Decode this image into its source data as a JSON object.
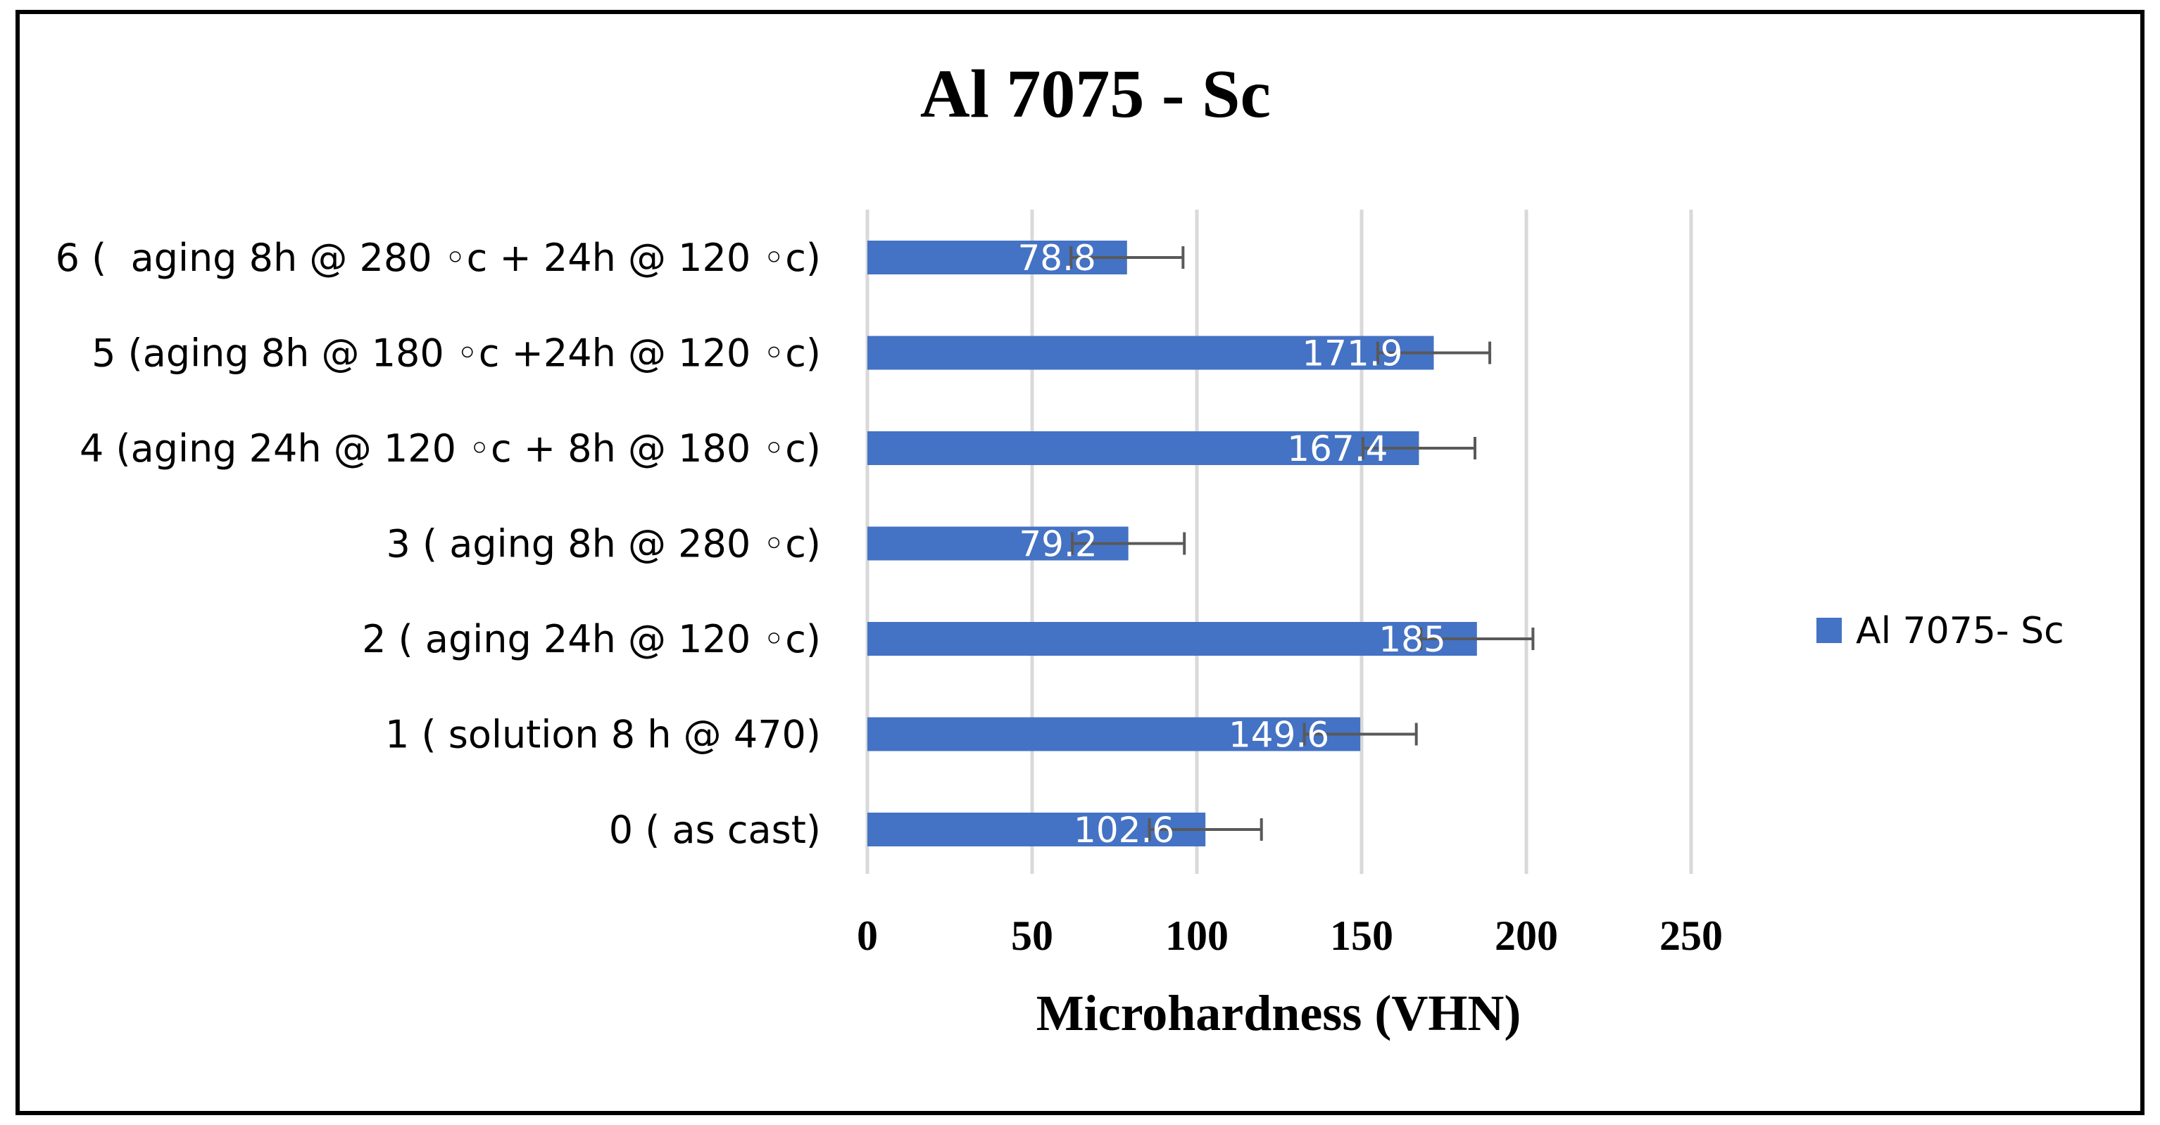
{
  "chart_data": {
    "type": "bar",
    "orientation": "horizontal",
    "title": "Al 7075 - Sc",
    "xlabel": "Microhardness (VHN)",
    "ylabel": "",
    "xlim": [
      0,
      250
    ],
    "x_ticks": [
      "0",
      "50",
      "100",
      "150",
      "200",
      "250"
    ],
    "x_tick_values": [
      0,
      50,
      100,
      150,
      200,
      250
    ],
    "grid": true,
    "legend_position": "right",
    "categories": [
      "0 ( as cast)",
      "1 ( solution 8 h @ 470)",
      "2 ( aging 24h @ 120 ◦c)",
      "3 ( aging 8h @ 280 ◦c)",
      "4 (aging 24h @ 120 ◦c + 8h @ 180 ◦c)",
      "5 (aging 8h @ 180 ◦c +24h @ 120 ◦c)",
      "6 (  aging 8h @ 280 ◦c + 24h @ 120 ◦c)"
    ],
    "series": [
      {
        "name": "Al 7075- Sc",
        "color": "#4472C4",
        "values": [
          102.6,
          149.6,
          185,
          79.2,
          167.4,
          171.9,
          78.8
        ],
        "labels": [
          "102.6",
          "149.6",
          "185",
          "79.2",
          "167.4",
          "171.9",
          "78.8"
        ],
        "error_plus": [
          17,
          17,
          17,
          17,
          17,
          17,
          17
        ]
      }
    ]
  }
}
